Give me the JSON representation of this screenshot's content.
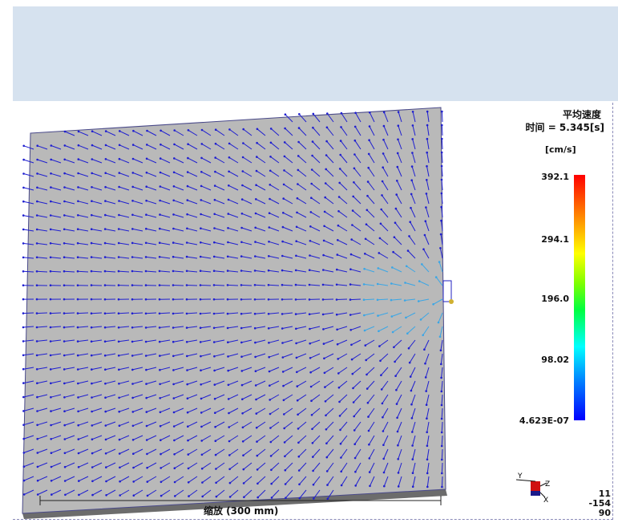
{
  "result": {
    "title": "平均速度",
    "time_label": "时间 = 5.345[s]"
  },
  "legend": {
    "unit": "[cm/s]",
    "ticks": [
      "392.1",
      "294.1",
      "196.0",
      "98.02",
      "4.623E-07"
    ],
    "colors": {
      "max": "#ff0000",
      "mid_high": "#ffff00",
      "mid": "#00ff40",
      "mid_low": "#00ffff",
      "min": "#0000ff"
    }
  },
  "orientation": {
    "values": [
      "11",
      "-154",
      "90"
    ],
    "axis_labels": [
      "Y",
      "Z",
      "X"
    ]
  },
  "scale": {
    "label": "缩放 (300 mm)"
  },
  "colors": {
    "banner": "#d6e2ef",
    "part_fill": "#b9b9b9",
    "part_edge": "#5a5a5a",
    "vector": "#1f1fd0",
    "vector_fast": "#3aa6e6"
  }
}
